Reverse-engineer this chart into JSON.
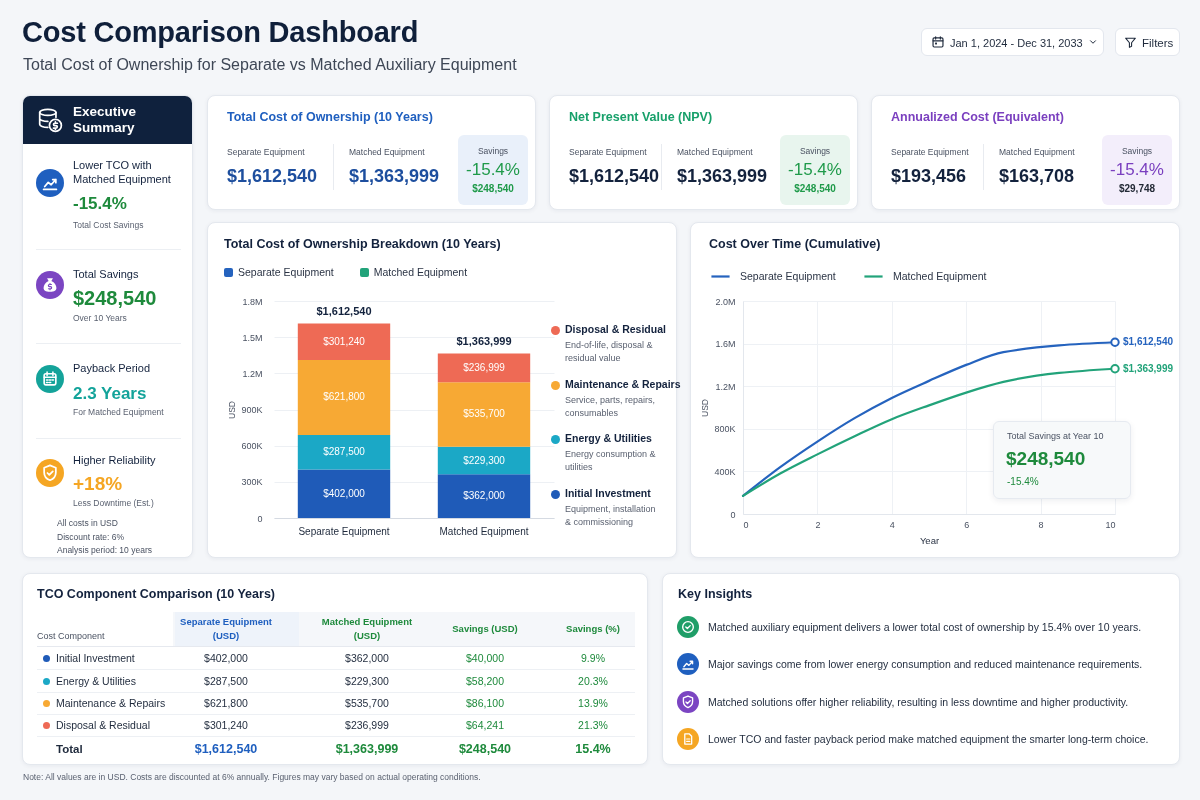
{
  "chart_data": [
    {
      "type": "other",
      "title": "Cost Comparison Dashboard",
      "subtitle": "Total Cost of Ownership for Separate vs Matched Auxiliary Equipment",
      "annotations": [
        "Jan 1, 2024 - Dec 31, 2033",
        "Filters"
      ]
    },
    {
      "type": "other",
      "title": "Executive Summary",
      "annotations": [
        "Lower TCO with Matched Equipment",
        "-15.4%",
        "Total Cost Savings",
        "Total Savings",
        "$248,540",
        "Over 10 Years",
        "Payback Period",
        "2.3 Years",
        "For Matched Equipment",
        "Higher Reliability",
        "+18%",
        "Less Downtime (Est.)",
        "All costs in USD",
        "Discount rate: 6%",
        "Analysis period: 10 years"
      ]
    },
    {
      "type": "other",
      "title": "Total Cost of Ownership (10 Years)",
      "annotations": [
        "Separate Equipment",
        "$1,612,540",
        "Matched Equipment",
        "$1,363,999",
        "Savings",
        "-15.4%",
        "$248,540"
      ]
    },
    {
      "type": "other",
      "title": "Net Present Value (NPV)",
      "annotations": [
        "Separate Equipment",
        "$1,612,540",
        "Matched Equipment",
        "$1,363,999",
        "Savings",
        "-15.4%",
        "$248,540"
      ]
    },
    {
      "type": "other",
      "title": "Annualized Cost (Equivalent)",
      "annotations": [
        "Separate Equipment",
        "$193,456",
        "Matched Equipment",
        "$163,708",
        "Savings",
        "-15.4%",
        "$29,748"
      ]
    },
    {
      "type": "bar",
      "title": "Total Cost of Ownership Breakdown (10 Years)",
      "categories": [
        "Separate Equipment",
        "Matched Equipment"
      ],
      "stacked": true,
      "ylabel": "USD",
      "ylim": [
        0,
        1800000
      ],
      "yticks": [
        0,
        {
          "value": 300000,
          "label": "300K"
        },
        {
          "value": 600000,
          "label": "600K"
        },
        {
          "value": 900000,
          "label": "900K"
        },
        {
          "value": 1200000,
          "label": "1.2M"
        },
        {
          "value": 1500000,
          "label": "1.5M"
        },
        {
          "value": 1800000,
          "label": "1.8M"
        }
      ],
      "grid": "y",
      "legend": "right",
      "series": [
        {
          "name": "Initial Investment",
          "color": "#1f5bb8",
          "values": [
            402000,
            362000
          ],
          "value_labels": [
            "$402,000",
            "$362,000"
          ]
        },
        {
          "name": "Energy & Utilities",
          "color": "#1ba8c6",
          "values": [
            287500,
            229300
          ],
          "value_labels": [
            "$287,500",
            "$229,300"
          ]
        },
        {
          "name": "Maintenance & Repairs",
          "color": "#f7a934",
          "values": [
            621800,
            535700
          ],
          "value_labels": [
            "$621,800",
            "$535,700"
          ]
        },
        {
          "name": "Disposal & Residual",
          "color": "#ee6a55",
          "values": [
            301240,
            236999
          ],
          "value_labels": [
            "$301,240",
            "$236,999"
          ]
        }
      ],
      "totals": [
        "$1,612,540",
        "$1,363,999"
      ],
      "annotations": [
        "Separate Equipment",
        "Matched Equipment",
        "Equipment, installation & commissioning",
        "Energy consumption & utilities",
        "Service, parts, repairs, consumables",
        "End-of-life, disposal & residual value"
      ]
    },
    {
      "type": "line",
      "title": "Cost Over Time (Cumulative)",
      "x": [
        0,
        1,
        2,
        3,
        4,
        5,
        6,
        7,
        10
      ],
      "xlabel": "Year",
      "ylabel": "USD",
      "xlim": [
        0,
        10
      ],
      "xticks": [
        0,
        2,
        4,
        6,
        8,
        10
      ],
      "ylim": [
        0,
        2000000
      ],
      "yticks": [
        0,
        {
          "value": 400000,
          "label": "400K"
        },
        {
          "value": 800000,
          "label": "800K"
        },
        {
          "value": 1200000,
          "label": "1.2M"
        },
        {
          "value": 1600000,
          "label": "1.6M"
        },
        {
          "value": 2000000,
          "label": "2.0M"
        }
      ],
      "grid": true,
      "legend": "top left",
      "line_style": "solid",
      "series": [
        {
          "name": "Separate Equipment",
          "color": "#2563be",
          "values": [
            170000,
            440000,
            680000,
            900000,
            1090000,
            1250000,
            1400000,
            1520000,
            1612540
          ]
        },
        {
          "name": "Matched Equipment",
          "color": "#22a37a",
          "values": [
            170000,
            380000,
            560000,
            730000,
            890000,
            1020000,
            1140000,
            1240000,
            1363999
          ]
        },
        {
          "type": "scatter",
          "color": "#2563be",
          "x": [
            10
          ],
          "values": [
            1612540
          ],
          "value_labels": [
            "$1,612,540"
          ]
        },
        {
          "type": "scatter",
          "color": "#22a37a",
          "x": [
            10
          ],
          "values": [
            1363999
          ],
          "value_labels": [
            "$1,363,999"
          ]
        }
      ],
      "annotations": [
        "Total Savings at Year 10",
        "$248,540",
        "-15.4%"
      ]
    },
    {
      "type": "other",
      "title": "TCO Component Comparison (10 Years)",
      "annotations": [
        "Cost Component",
        "Separate Equipment (USD)",
        "Matched Equipment (USD)",
        "Savings (USD)",
        "Savings (%)",
        "Initial Investment",
        "$402,000",
        "$362,000",
        "$40,000",
        "9.9%",
        "Energy & Utilities",
        "$287,500",
        "$229,300",
        "$58,200",
        "20.3%",
        "Maintenance & Repairs",
        "$621,800",
        "$535,700",
        "$86,100",
        "13.9%",
        "Disposal & Residual",
        "$301,240",
        "$236,999",
        "$64,241",
        "21.3%",
        "Total",
        "$1,612,540",
        "$1,363,999",
        "$248,540",
        "15.4%",
        "Note: All values are in USD. Costs are discounted at 6% annually. Figures may vary based on actual operating conditions."
      ]
    },
    {
      "type": "other",
      "title": "Key Insights",
      "annotations": [
        "Matched auxiliary equipment delivers a lower total cost of ownership by 15.4% over 10 years.",
        "Major savings come from lower energy consumption and reduced maintenance requirements.",
        "Matched solutions offer higher reliability, resulting in less downtime and higher productivity.",
        "Lower TCO and faster payback period make matched equipment the smarter long-term choice."
      ]
    }
  ]
}
